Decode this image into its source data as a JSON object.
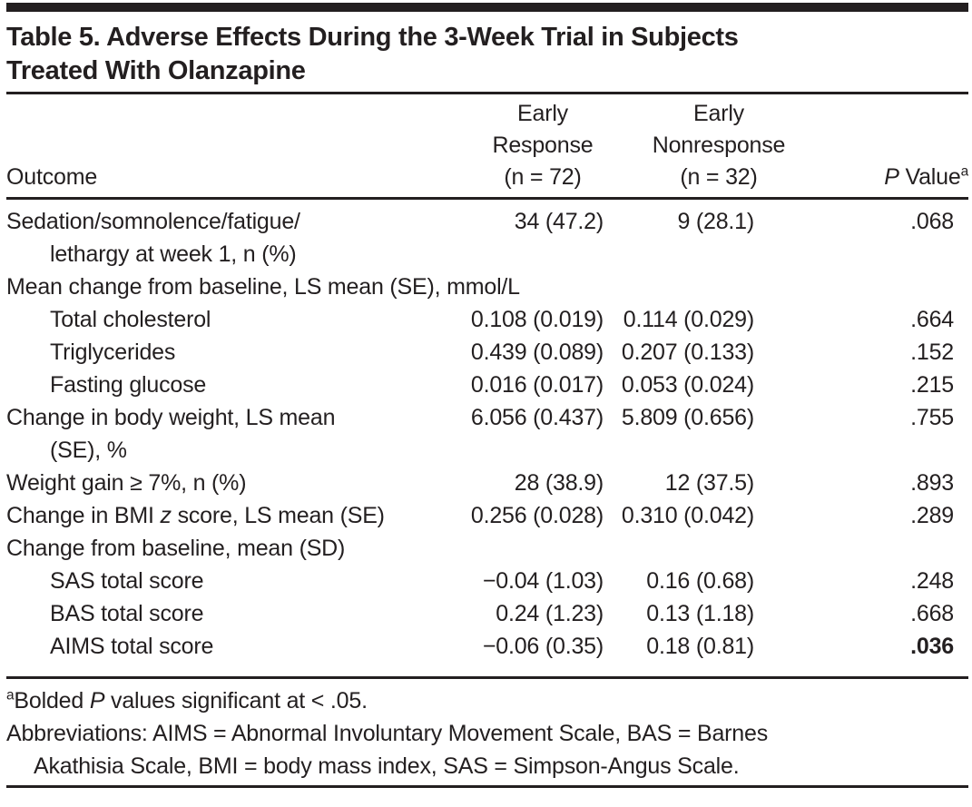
{
  "colors": {
    "ink": "#231f20",
    "background": "#ffffff"
  },
  "title": {
    "lines": [
      "Table 5. Adverse Effects During the 3-Week Trial in Subjects",
      "Treated With Olanzapine"
    ]
  },
  "header": {
    "outcome": "Outcome",
    "early_response": [
      "Early",
      "Response",
      "(n = 72)"
    ],
    "early_nonresponse": [
      "Early",
      "Nonresponse",
      "(n = 32)"
    ],
    "p_value": {
      "italic": "P",
      "rest": " Value",
      "sup": "a"
    }
  },
  "rows": [
    {
      "label": "Sedation/somnolence/fatigue/",
      "label2": "lethargy at week 1, n (%)",
      "er": "34 (47.2)",
      "en": "9 (28.1)",
      "p": ".068"
    },
    {
      "label": "Mean change from baseline, LS mean (SE), mmol/L"
    },
    {
      "label": "Total cholesterol",
      "er": "0.108 (0.019)",
      "en": "0.114 (0.029)",
      "p": ".664"
    },
    {
      "label": "Triglycerides",
      "er": "0.439 (0.089)",
      "en": "0.207 (0.133)",
      "p": ".152"
    },
    {
      "label": "Fasting glucose",
      "er": "0.016 (0.017)",
      "en": "0.053 (0.024)",
      "p": ".215"
    },
    {
      "label": "Change in body weight, LS mean",
      "label2": "(SE), %",
      "er": "6.056 (0.437)",
      "en": "5.809 (0.656)",
      "p": ".755"
    },
    {
      "label": "Weight gain ≥ 7%, n (%)",
      "er": "28 (38.9)",
      "en": "12 (37.5)",
      "p": ".893"
    },
    {
      "label_pre": "Change in BMI ",
      "label_italic": "z",
      "label_post": " score, LS mean (SE)",
      "er": "0.256 (0.028)",
      "en": "0.310 (0.042)",
      "p": ".289"
    },
    {
      "label": "Change from baseline, mean (SD)"
    },
    {
      "label": "SAS total score",
      "er": "−0.04 (1.03)",
      "en": "0.16 (0.68)",
      "p": ".248"
    },
    {
      "label": "BAS total score",
      "er": "0.24 (1.23)",
      "en": "0.13 (1.18)",
      "p": ".668"
    },
    {
      "label": "AIMS total score",
      "er": "−0.06 (0.35)",
      "en": "0.18 (0.81)",
      "p": ".036"
    }
  ],
  "footnotes": {
    "significance": {
      "sup": "a",
      "pre": "Bolded ",
      "italic": "P",
      "post": " values significant at < .05."
    },
    "abbreviations": [
      "Abbreviations: AIMS = Abnormal Involuntary Movement Scale, BAS = Barnes",
      "Akathisia Scale, BMI = body mass index, SAS = Simpson-Angus Scale."
    ]
  }
}
